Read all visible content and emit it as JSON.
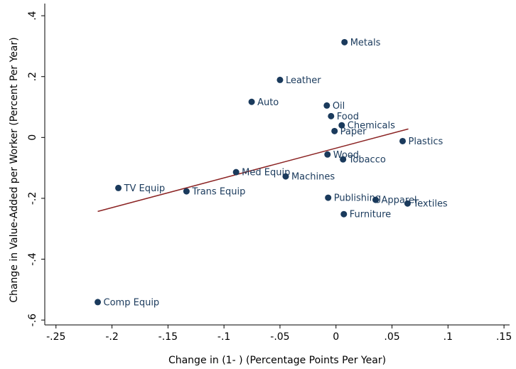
{
  "chart_data": {
    "type": "scatter",
    "x_label": "Change in (1- ) (Percentage Points Per Year)",
    "y_label": "Change in Value-Added per Worker (Percent Per Year)",
    "labels": [
      "Metals",
      "Leather",
      "Auto",
      "Oil",
      "Food",
      "Chemicals",
      "Paper",
      "Plastics",
      "Wood",
      "Tobacco",
      "Med Equip",
      "Machines",
      "TV Equip",
      "Trans Equip",
      "Publishing",
      "Apparel",
      "Textiles",
      "Furniture",
      "Comp Equip"
    ],
    "x": [
      0.0076,
      -0.05,
      -0.0753,
      -0.0082,
      -0.0044,
      0.0051,
      -0.0013,
      0.0595,
      -0.0076,
      0.0063,
      -0.0892,
      -0.0449,
      -0.1943,
      -0.1335,
      -0.007,
      0.0354,
      0.0639,
      0.007,
      -0.2127
    ],
    "y": [
      0.313,
      0.189,
      0.117,
      0.105,
      0.07,
      0.04,
      0.021,
      -0.012,
      -0.056,
      -0.072,
      -0.114,
      -0.128,
      -0.166,
      -0.177,
      -0.198,
      -0.205,
      -0.217,
      -0.252,
      -0.541
    ],
    "color": "#1a3a5c",
    "fit_line": {
      "x": [
        -0.2127,
        0.0646
      ],
      "y": [
        -0.243,
        0.028
      ],
      "color": "#8b2323"
    },
    "xlim": [
      -0.26,
      0.155
    ],
    "ylim": [
      -0.616,
      0.44
    ],
    "xticks": [
      {
        "value": -0.25,
        "label": "-.25"
      },
      {
        "value": -0.2,
        "label": "-.2"
      },
      {
        "value": -0.15,
        "label": "-.15"
      },
      {
        "value": -0.1,
        "label": "-.1"
      },
      {
        "value": -0.05,
        "label": "-.05"
      },
      0,
      {
        "value": 0.05,
        "label": ".05"
      },
      {
        "value": 0.1,
        "label": ".1"
      },
      {
        "value": 0.15,
        "label": ".15"
      }
    ],
    "yticks": [
      {
        "value": -0.6,
        "label": "-.6"
      },
      {
        "value": -0.4,
        "label": "-.4"
      },
      {
        "value": -0.2,
        "label": "-.2"
      },
      0,
      {
        "value": 0.2,
        "label": ".2"
      },
      {
        "value": 0.4,
        "label": ".4"
      }
    ]
  }
}
